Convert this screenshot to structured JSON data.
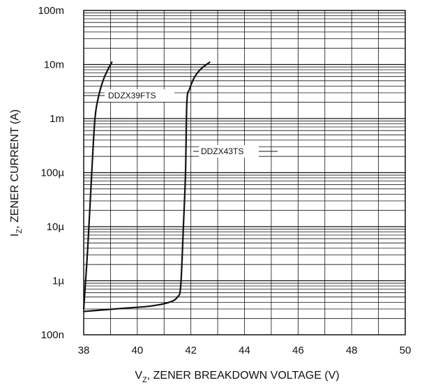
{
  "chart_data": {
    "type": "line",
    "title": "",
    "xlabel": {
      "main": "V",
      "sub": "Z",
      "rest": ", ZENER BREAKDOWN VOLTAGE (V)"
    },
    "ylabel": {
      "main": "I",
      "sub": "Z",
      "rest": ", ZENER CURRENT (A)"
    },
    "xlim": [
      38,
      50
    ],
    "ylim": [
      1e-07,
      0.1
    ],
    "yscale": "log",
    "grid": true,
    "x_ticks": [
      38,
      40,
      42,
      44,
      46,
      48,
      50
    ],
    "x_tick_labels": [
      "38",
      "40",
      "42",
      "44",
      "46",
      "48",
      "50"
    ],
    "y_ticks": [
      1e-07,
      1e-06,
      1e-05,
      0.0001,
      0.001,
      0.01,
      0.1
    ],
    "y_tick_labels": [
      "100n",
      "1µ",
      "10µ",
      "100µ",
      "1m",
      "10m",
      "100m"
    ],
    "series": [
      {
        "name": "DDZX39FTS",
        "x": [
          38.0,
          38.15,
          38.3,
          38.42,
          38.55,
          38.72,
          38.9,
          39.05
        ],
        "y": [
          3e-07,
          4e-06,
          0.0001,
          0.001,
          0.0025,
          0.005,
          0.008,
          0.011
        ]
      },
      {
        "name": "DDZX43TS",
        "x": [
          38.0,
          39.5,
          40.5,
          41.2,
          41.5,
          41.62,
          41.72,
          41.8,
          41.85,
          41.95,
          42.15,
          42.4,
          42.7
        ],
        "y": [
          2.7e-07,
          3.1e-07,
          3.4e-07,
          4e-07,
          5e-07,
          8e-07,
          1e-05,
          0.0001,
          0.002,
          0.0035,
          0.006,
          0.0085,
          0.011
        ]
      }
    ]
  }
}
